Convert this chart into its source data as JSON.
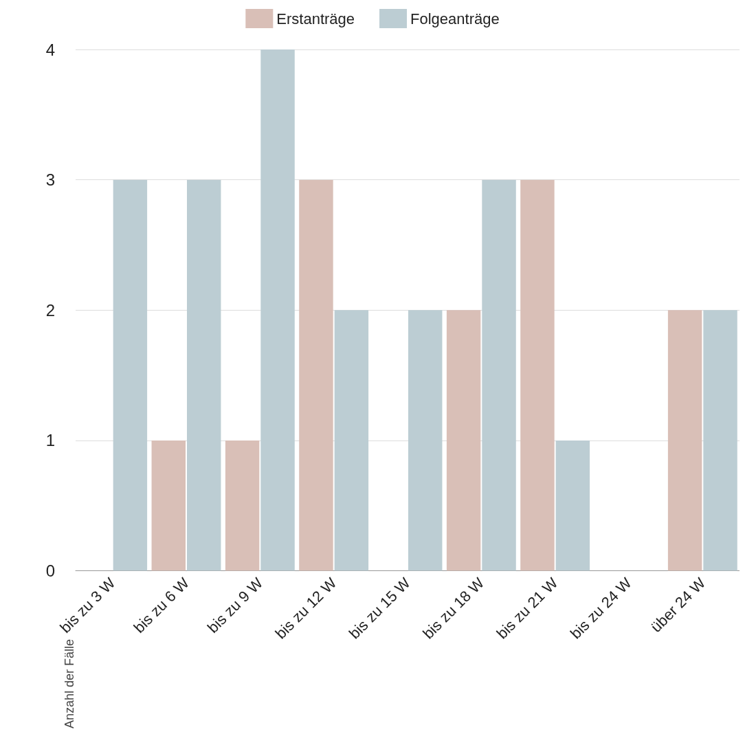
{
  "chart_data": {
    "type": "bar",
    "ylabel": "Anzahl der Fälle",
    "categories": [
      "bis zu 3 W",
      "bis zu 6 W",
      "bis zu 9 W",
      "bis zu 12 W",
      "bis zu 15 W",
      "bis zu 18 W",
      "bis zu 21 W",
      "bis zu 24 W",
      "über 24 W"
    ],
    "series": [
      {
        "name": "Erstanträge",
        "color": "#d9bfb7",
        "values": [
          0,
          1,
          1,
          3,
          0,
          2,
          3,
          0,
          2
        ]
      },
      {
        "name": "Folgeanträge",
        "color": "#bccdd3",
        "values": [
          3,
          3,
          4,
          2,
          2,
          3,
          1,
          0,
          2
        ]
      }
    ],
    "ylim": [
      0,
      4
    ],
    "yticks": [
      0,
      1,
      2,
      3,
      4
    ],
    "grid": "y",
    "legend": "top"
  }
}
